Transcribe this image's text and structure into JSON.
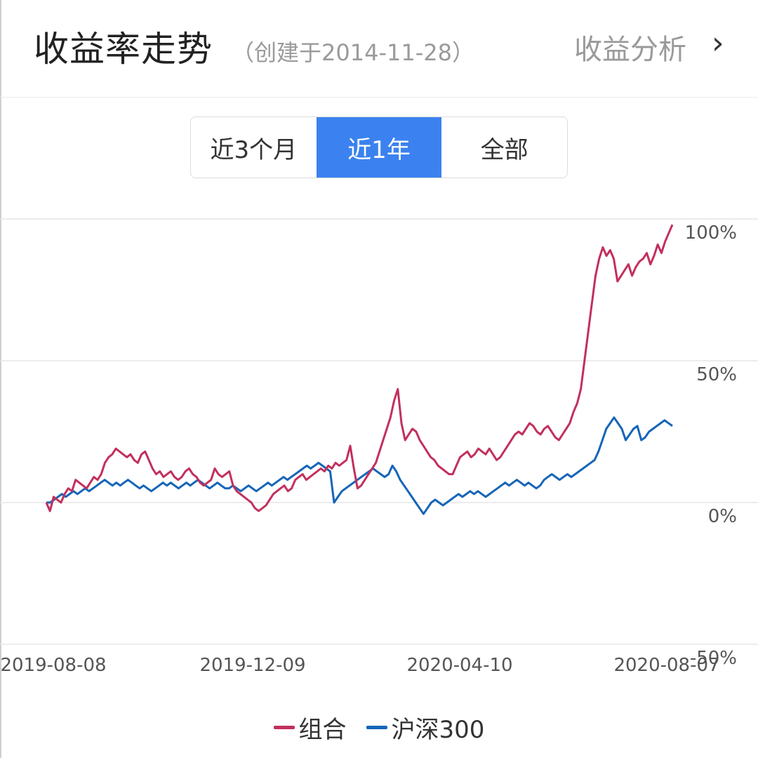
{
  "header": {
    "title": "收益率走势",
    "subtitle": "（创建于2014-11-28）",
    "analysis_label": "收益分析",
    "chevron": "›"
  },
  "tabs": [
    {
      "label": "近3个月",
      "active": false
    },
    {
      "label": "近1年",
      "active": true
    },
    {
      "label": "全部",
      "active": false
    }
  ],
  "colors": {
    "accent": "#3b82f0",
    "portfolio": "#c2305d",
    "benchmark": "#1565b8"
  },
  "chart_data": {
    "type": "line",
    "ylim": [
      -50,
      100
    ],
    "yticks": [
      "100%",
      "50%",
      "0%",
      "-50%"
    ],
    "ytick_values": [
      100,
      50,
      0,
      -50
    ],
    "xticks": [
      "2019-08-08",
      "2019-12-09",
      "2020-04-10",
      "2020-08-07"
    ],
    "grid": true,
    "legend_position": "bottom",
    "series": [
      {
        "name": "组合",
        "color": "#c2305d",
        "values": [
          0,
          -3,
          2,
          1,
          0,
          3,
          5,
          4,
          8,
          7,
          6,
          5,
          7,
          9,
          8,
          10,
          14,
          16,
          17,
          19,
          18,
          17,
          16,
          17,
          15,
          14,
          17,
          18,
          15,
          12,
          10,
          11,
          9,
          10,
          11,
          9,
          8,
          9,
          11,
          12,
          10,
          9,
          7,
          6,
          7,
          8,
          12,
          10,
          9,
          10,
          11,
          6,
          4,
          3,
          2,
          1,
          0,
          -2,
          -3,
          -2,
          -1,
          1,
          3,
          4,
          5,
          6,
          4,
          5,
          8,
          9,
          10,
          8,
          9,
          10,
          11,
          12,
          11,
          13,
          12,
          14,
          13,
          14,
          15,
          20,
          12,
          5,
          6,
          8,
          10,
          12,
          14,
          18,
          22,
          26,
          30,
          36,
          40,
          28,
          22,
          24,
          26,
          25,
          22,
          20,
          18,
          16,
          15,
          13,
          12,
          11,
          10,
          10,
          13,
          16,
          17,
          18,
          16,
          17,
          19,
          18,
          17,
          19,
          17,
          15,
          16,
          18,
          20,
          22,
          24,
          25,
          24,
          26,
          28,
          27,
          25,
          24,
          26,
          27,
          25,
          23,
          22,
          24,
          26,
          28,
          32,
          35,
          40,
          50,
          60,
          70,
          80,
          86,
          90,
          87,
          89,
          86,
          78,
          80,
          82,
          84,
          80,
          83,
          85,
          86,
          88,
          84,
          87,
          91,
          88,
          92,
          95,
          98
        ]
      },
      {
        "name": "沪深300",
        "color": "#1565b8",
        "values": [
          0,
          0,
          1,
          2,
          3,
          2,
          3,
          4,
          3,
          4,
          5,
          4,
          5,
          6,
          7,
          8,
          7,
          6,
          7,
          6,
          7,
          8,
          7,
          6,
          5,
          6,
          5,
          4,
          5,
          6,
          7,
          6,
          7,
          6,
          5,
          6,
          7,
          6,
          7,
          8,
          7,
          6,
          5,
          6,
          7,
          6,
          5,
          5,
          6,
          5,
          4,
          5,
          6,
          5,
          4,
          5,
          6,
          7,
          6,
          7,
          8,
          9,
          8,
          9,
          10,
          11,
          12,
          13,
          12,
          13,
          14,
          13,
          12,
          11,
          0,
          2,
          4,
          5,
          6,
          7,
          8,
          9,
          10,
          11,
          12,
          11,
          10,
          9,
          10,
          13,
          11,
          8,
          6,
          4,
          2,
          0,
          -2,
          -4,
          -2,
          0,
          1,
          0,
          -1,
          0,
          1,
          2,
          3,
          2,
          3,
          4,
          3,
          4,
          3,
          2,
          3,
          4,
          5,
          6,
          7,
          6,
          7,
          8,
          7,
          6,
          7,
          6,
          5,
          6,
          8,
          9,
          10,
          9,
          8,
          9,
          10,
          9,
          10,
          11,
          12,
          13,
          14,
          15,
          18,
          22,
          26,
          28,
          30,
          28,
          26,
          22,
          24,
          26,
          27,
          22,
          23,
          25,
          26,
          27,
          28,
          29,
          28,
          27
        ]
      }
    ]
  }
}
